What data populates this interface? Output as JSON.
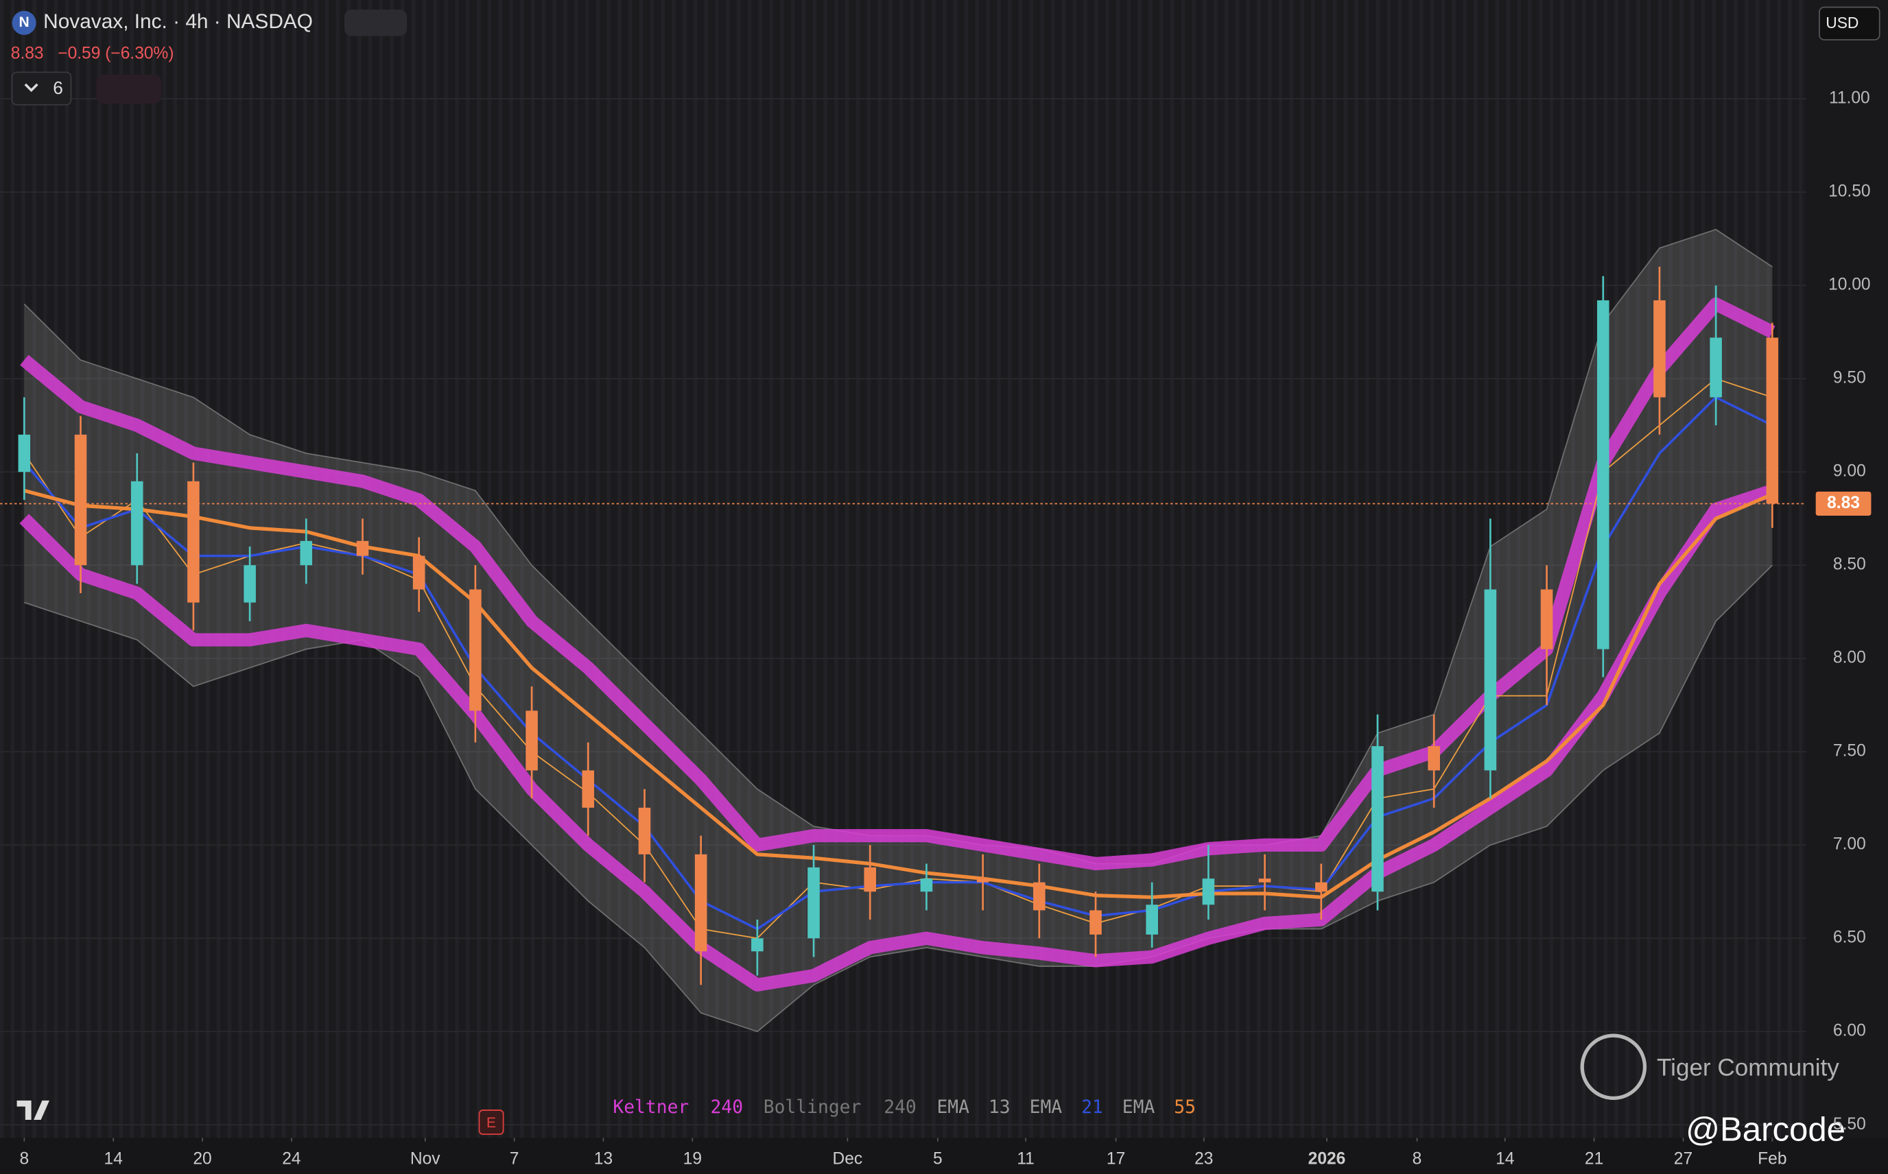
{
  "chart_data": {
    "type": "candlestick",
    "logo": "N",
    "title": "Novavax, Inc. · 4h · NASDAQ",
    "price": 8.83,
    "change": "−0.59 (−6.30%)",
    "interval_count": "6",
    "currency": "USD",
    "up_color": "#4fc6c0",
    "down_color": "#f0854c",
    "open": [
      9.0,
      9.2,
      8.5,
      8.95,
      8.3,
      8.5,
      8.63,
      8.55,
      8.37,
      7.72,
      7.4,
      7.2,
      6.95,
      6.43,
      6.5,
      6.88,
      6.75,
      6.82,
      6.8,
      6.65,
      6.52,
      6.68,
      6.82,
      6.8,
      6.75,
      7.53,
      7.4,
      8.37,
      8.05,
      9.92,
      9.4,
      9.72
    ],
    "high": [
      9.4,
      9.3,
      9.1,
      9.05,
      8.6,
      8.75,
      8.75,
      8.65,
      8.5,
      7.85,
      7.55,
      7.3,
      7.05,
      6.6,
      7.0,
      7.0,
      6.9,
      6.95,
      6.9,
      6.75,
      6.8,
      7.0,
      6.95,
      6.9,
      7.7,
      7.7,
      8.75,
      8.5,
      10.05,
      10.1,
      10.0,
      9.8
    ],
    "low": [
      8.85,
      8.35,
      8.4,
      8.15,
      8.2,
      8.4,
      8.45,
      8.25,
      7.55,
      7.25,
      7.05,
      6.8,
      6.25,
      6.3,
      6.4,
      6.6,
      6.65,
      6.65,
      6.5,
      6.4,
      6.45,
      6.6,
      6.65,
      6.6,
      6.65,
      7.2,
      7.25,
      7.75,
      7.9,
      9.2,
      9.25,
      8.7
    ],
    "close": [
      9.2,
      8.5,
      8.95,
      8.3,
      8.5,
      8.63,
      8.55,
      8.37,
      7.72,
      7.4,
      7.2,
      6.95,
      6.43,
      6.5,
      6.88,
      6.75,
      6.82,
      6.8,
      6.65,
      6.52,
      6.68,
      6.82,
      6.8,
      6.75,
      7.53,
      7.4,
      8.37,
      8.05,
      9.92,
      9.4,
      9.72,
      8.83
    ],
    "bands": [
      {
        "name": "Bollinger",
        "color": "#9a9a9a",
        "upper": [
          9.9,
          9.6,
          9.5,
          9.4,
          9.2,
          9.1,
          9.05,
          9.0,
          8.9,
          8.5,
          8.2,
          7.9,
          7.6,
          7.3,
          7.1,
          7.05,
          7.05,
          7.0,
          6.98,
          6.9,
          6.9,
          7.0,
          7.0,
          7.05,
          7.6,
          7.7,
          8.6,
          8.8,
          9.8,
          10.2,
          10.3,
          10.1
        ],
        "lower": [
          8.3,
          8.2,
          8.1,
          7.85,
          7.95,
          8.05,
          8.1,
          7.9,
          7.3,
          7.0,
          6.7,
          6.45,
          6.1,
          6.0,
          6.25,
          6.4,
          6.45,
          6.4,
          6.35,
          6.35,
          6.4,
          6.5,
          6.55,
          6.55,
          6.7,
          6.8,
          7.0,
          7.1,
          7.4,
          7.6,
          8.2,
          8.5
        ]
      },
      {
        "name": "Keltner",
        "color": "#d93ed6",
        "upper": [
          9.6,
          9.35,
          9.25,
          9.1,
          9.05,
          9.0,
          8.95,
          8.85,
          8.6,
          8.2,
          7.95,
          7.65,
          7.35,
          7.0,
          7.05,
          7.05,
          7.05,
          7.0,
          6.95,
          6.9,
          6.92,
          6.98,
          7.0,
          7.0,
          7.4,
          7.5,
          7.8,
          8.05,
          9.05,
          9.55,
          9.9,
          9.75
        ],
        "lower": [
          8.75,
          8.45,
          8.35,
          8.1,
          8.1,
          8.15,
          8.1,
          8.05,
          7.7,
          7.3,
          7.0,
          6.75,
          6.45,
          6.25,
          6.3,
          6.45,
          6.5,
          6.45,
          6.42,
          6.38,
          6.4,
          6.5,
          6.58,
          6.6,
          6.85,
          7.0,
          7.2,
          7.4,
          7.8,
          8.35,
          8.8,
          8.9
        ]
      }
    ],
    "series": [
      {
        "name": "EMA",
        "period": "13",
        "color": "#f0a040",
        "values": [
          9.1,
          8.65,
          8.85,
          8.45,
          8.55,
          8.62,
          8.55,
          8.42,
          7.85,
          7.5,
          7.28,
          7.0,
          6.55,
          6.5,
          6.8,
          6.76,
          6.82,
          6.8,
          6.68,
          6.58,
          6.66,
          6.78,
          6.78,
          6.75,
          7.25,
          7.3,
          7.8,
          7.8,
          9.0,
          9.25,
          9.5,
          9.4
        ]
      },
      {
        "name": "EMA",
        "period": "21",
        "color": "#3050e0",
        "values": [
          9.05,
          8.7,
          8.8,
          8.55,
          8.55,
          8.6,
          8.55,
          8.45,
          7.95,
          7.6,
          7.35,
          7.1,
          6.7,
          6.55,
          6.75,
          6.78,
          6.8,
          6.8,
          6.7,
          6.62,
          6.65,
          6.75,
          6.78,
          6.76,
          7.15,
          7.25,
          7.55,
          7.75,
          8.6,
          9.1,
          9.4,
          9.25
        ]
      },
      {
        "name": "EMA",
        "period": "55",
        "color": "#f08a3a",
        "values": [
          8.9,
          8.82,
          8.8,
          8.76,
          8.7,
          8.68,
          8.6,
          8.55,
          8.3,
          7.95,
          7.7,
          7.45,
          7.2,
          6.95,
          6.93,
          6.9,
          6.85,
          6.82,
          6.78,
          6.73,
          6.72,
          6.74,
          6.74,
          6.72,
          6.92,
          7.07,
          7.25,
          7.45,
          7.75,
          8.4,
          8.75,
          8.88
        ]
      }
    ],
    "band_periods": [
      "240",
      "240"
    ],
    "xlim": [
      -0.43,
      31.6
    ],
    "xticks": [
      {
        "value": 0,
        "label": "8"
      },
      {
        "value": 1.58,
        "label": "14"
      },
      {
        "value": 3.16,
        "label": "20"
      },
      {
        "value": 4.74,
        "label": "24"
      },
      {
        "value": 7.11,
        "label": "Nov"
      },
      {
        "value": 8.69,
        "label": "7"
      },
      {
        "value": 10.27,
        "label": "13"
      },
      {
        "value": 11.85,
        "label": "19"
      },
      {
        "value": 14.6,
        "label": "Dec"
      },
      {
        "value": 16.2,
        "label": "5"
      },
      {
        "value": 17.76,
        "label": "11"
      },
      {
        "value": 19.36,
        "label": "17"
      },
      {
        "value": 20.92,
        "label": "23"
      },
      {
        "value": 23.1,
        "label": "2026"
      },
      {
        "value": 24.7,
        "label": "8"
      },
      {
        "value": 26.26,
        "label": "14"
      },
      {
        "value": 27.84,
        "label": "21"
      },
      {
        "value": 29.42,
        "label": "27"
      },
      {
        "value": 31,
        "label": "Feb"
      }
    ],
    "ylim": [
      5.43,
      11.53
    ],
    "yticks": [
      {
        "value": 5.5,
        "label": "5.50"
      },
      {
        "value": 6,
        "label": "6.00"
      },
      {
        "value": 6.5,
        "label": "6.50"
      },
      {
        "value": 7,
        "label": "7.00"
      },
      {
        "value": 7.5,
        "label": "7.50"
      },
      {
        "value": 8,
        "label": "8.00"
      },
      {
        "value": 8.5,
        "label": "8.50"
      },
      {
        "value": 9,
        "label": "9.00"
      },
      {
        "value": 9.5,
        "label": "9.50"
      },
      {
        "value": 10,
        "label": "10.00"
      },
      {
        "value": 10.5,
        "label": "10.50"
      },
      {
        "value": 11,
        "label": "11.00"
      }
    ],
    "watermark": "Tiger Community",
    "handle": "@Barcode",
    "earnings_marker": "E"
  }
}
